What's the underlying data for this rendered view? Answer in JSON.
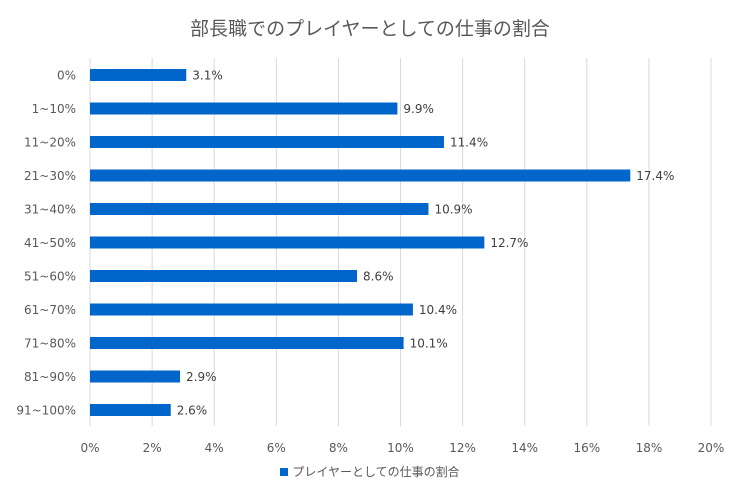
{
  "chart_data": {
    "type": "bar",
    "orientation": "horizontal",
    "title": "部長職でのプレイヤーとしての仕事の割合",
    "categories": [
      "0%",
      "1~10%",
      "11~20%",
      "21~30%",
      "31~40%",
      "41~50%",
      "51~60%",
      "61~70%",
      "71~80%",
      "81~90%",
      "91~100%"
    ],
    "series": [
      {
        "name": "プレイヤーとしての仕事の割合",
        "values": [
          3.1,
          9.9,
          11.4,
          17.4,
          10.9,
          12.7,
          8.6,
          10.4,
          10.1,
          2.9,
          2.6
        ],
        "labels": [
          "3.1%",
          "9.9%",
          "11.4%",
          "17.4%",
          "10.9%",
          "12.7%",
          "8.6%",
          "10.4%",
          "10.1%",
          "2.9%",
          "2.6%"
        ],
        "color": "#0066cc"
      }
    ],
    "xlim": [
      0,
      20
    ],
    "xticks": [
      "0%",
      "2%",
      "4%",
      "6%",
      "8%",
      "10%",
      "12%",
      "14%",
      "16%",
      "18%",
      "20%"
    ],
    "grid": true,
    "legend": "bottom"
  }
}
